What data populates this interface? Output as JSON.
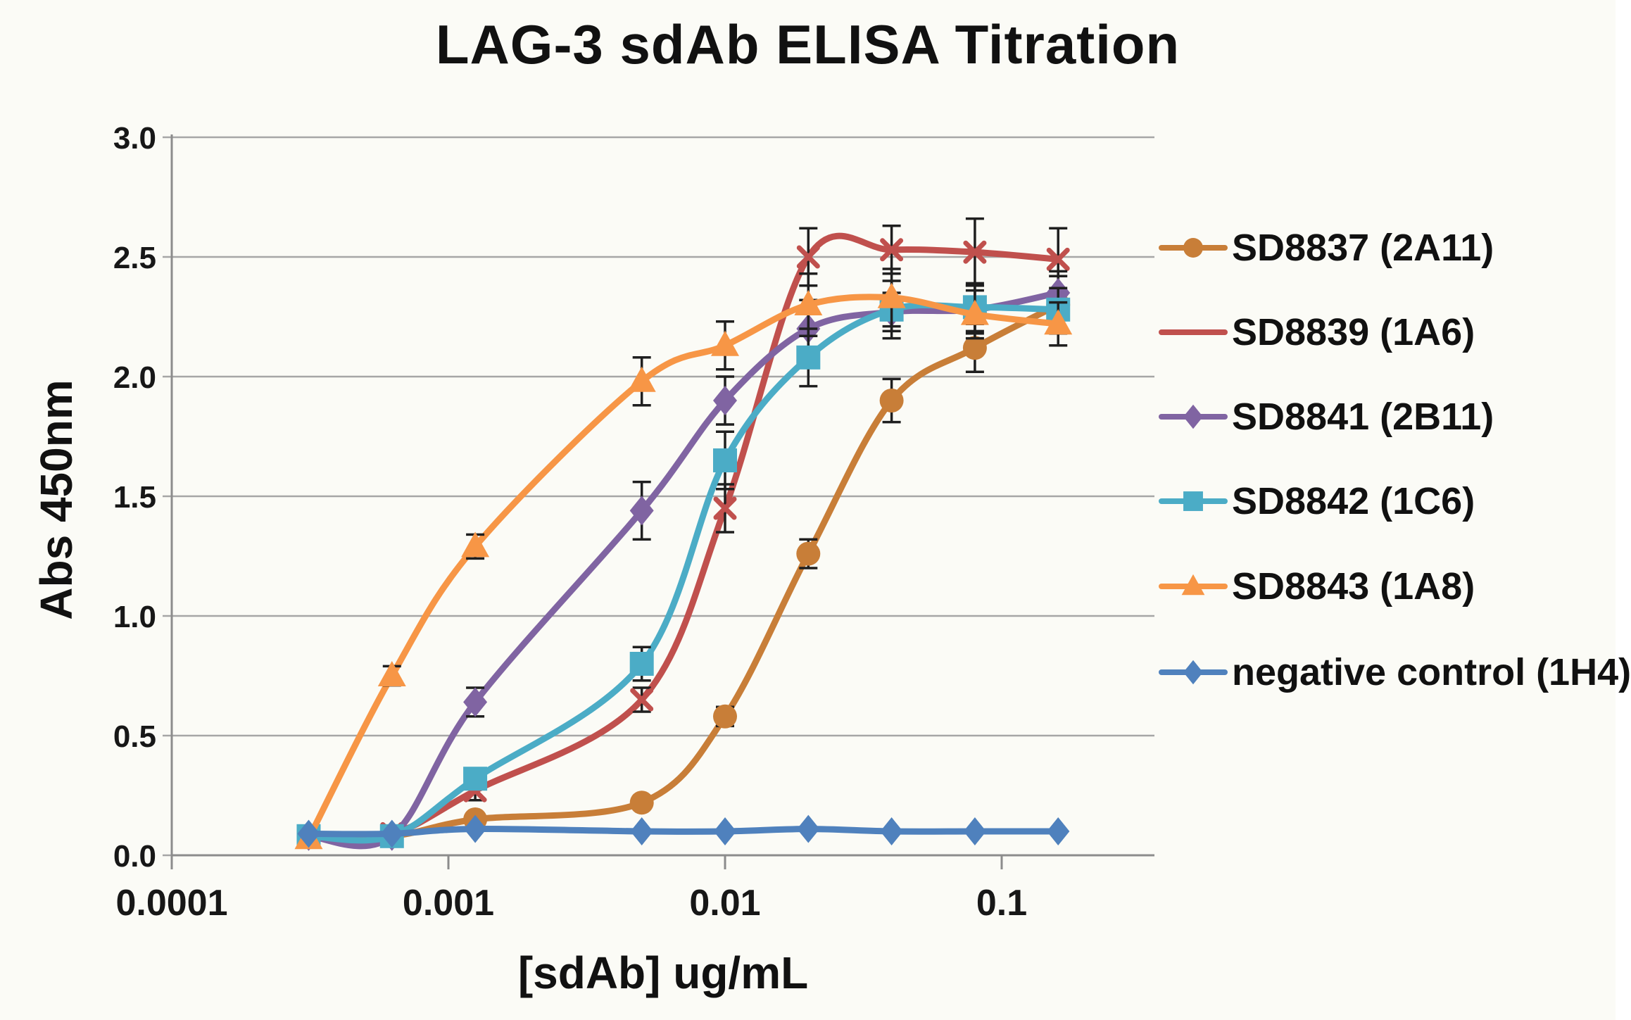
{
  "chart_data": {
    "type": "line",
    "title": "LAG-3 sdAb ELISA Titration",
    "xlabel": "[sdAb] ug/mL",
    "ylabel": "Abs 450nm",
    "x_scale": "log",
    "xlim": [
      0.0001,
      0.36
    ],
    "ylim": [
      0.0,
      3.0
    ],
    "grid": "horizontal",
    "legend_position": "right",
    "x_ticks": [
      {
        "label": "0.0001",
        "v": 0.0001
      },
      {
        "label": "0.001",
        "v": 0.001
      },
      {
        "label": "0.01",
        "v": 0.01
      },
      {
        "label": "0.1",
        "v": 0.1
      }
    ],
    "y_ticks": [
      {
        "label": "3.0",
        "v": 3.0
      },
      {
        "label": "2.5",
        "v": 2.5
      },
      {
        "label": "2.0",
        "v": 2.0
      },
      {
        "label": "1.5",
        "v": 1.5
      },
      {
        "label": "1.0",
        "v": 1.0
      },
      {
        "label": "0.5",
        "v": 0.5
      },
      {
        "label": "0.0",
        "v": 0.0
      }
    ],
    "x": [
      0.0003125,
      0.000625,
      0.00125,
      0.005,
      0.01,
      0.02,
      0.04,
      0.08,
      0.16
    ],
    "series": [
      {
        "name": "SD8837 (2A11)",
        "color": "#C87E38",
        "marker": "circle",
        "legend_marker": "circle",
        "values": [
          0.08,
          0.08,
          0.15,
          0.22,
          0.58,
          1.26,
          1.9,
          2.12,
          2.3
        ],
        "err": [
          0.01,
          0.01,
          0.02,
          0.02,
          0.04,
          0.06,
          0.09,
          0.1,
          0.12
        ]
      },
      {
        "name": "SD8839 (1A6)",
        "color": "#C0504D",
        "marker": "x",
        "legend_marker": "none",
        "values": [
          0.08,
          0.09,
          0.27,
          0.65,
          1.45,
          2.5,
          2.53,
          2.52,
          2.49
        ],
        "err": [
          0.01,
          0.01,
          0.04,
          0.05,
          0.1,
          0.12,
          0.1,
          0.14,
          0.13
        ]
      },
      {
        "name": "SD8841 (2B11)",
        "color": "#8064A2",
        "marker": "diamond",
        "legend_marker": "diamond",
        "values": [
          0.08,
          0.08,
          0.64,
          1.44,
          1.9,
          2.2,
          2.27,
          2.28,
          2.35
        ],
        "err": [
          0.01,
          0.01,
          0.06,
          0.12,
          0.1,
          0.12,
          0.08,
          0.1,
          0.09
        ]
      },
      {
        "name": "SD8842 (1C6)",
        "color": "#4BACC6",
        "marker": "square",
        "legend_marker": "square",
        "values": [
          0.08,
          0.08,
          0.32,
          0.8,
          1.65,
          2.08,
          2.28,
          2.29,
          2.28
        ],
        "err": [
          0.01,
          0.01,
          0.04,
          0.07,
          0.12,
          0.12,
          0.12,
          0.1,
          0.09
        ]
      },
      {
        "name": "SD8843 (1A8)",
        "color": "#F79646",
        "marker": "triangle",
        "legend_marker": "triangle",
        "values": [
          0.07,
          0.75,
          1.29,
          1.98,
          2.13,
          2.3,
          2.33,
          2.26,
          2.22
        ],
        "err": [
          0.02,
          0.04,
          0.05,
          0.1,
          0.1,
          0.13,
          0.12,
          0.1,
          0.09
        ]
      },
      {
        "name": "negative control (1H4)",
        "color": "#4F81BD",
        "marker": "diamond",
        "legend_marker": "diamond",
        "values": [
          0.09,
          0.09,
          0.11,
          0.1,
          0.1,
          0.11,
          0.1,
          0.1,
          0.1
        ],
        "err": [
          0.01,
          0.01,
          0.01,
          0.01,
          0.01,
          0.01,
          0.01,
          0.01,
          0.01
        ]
      }
    ],
    "colors": {
      "grid": "#A6A6A6",
      "axis": "#8C8C8C",
      "error_bar": "#1F1F1F",
      "text": "#171717"
    }
  }
}
